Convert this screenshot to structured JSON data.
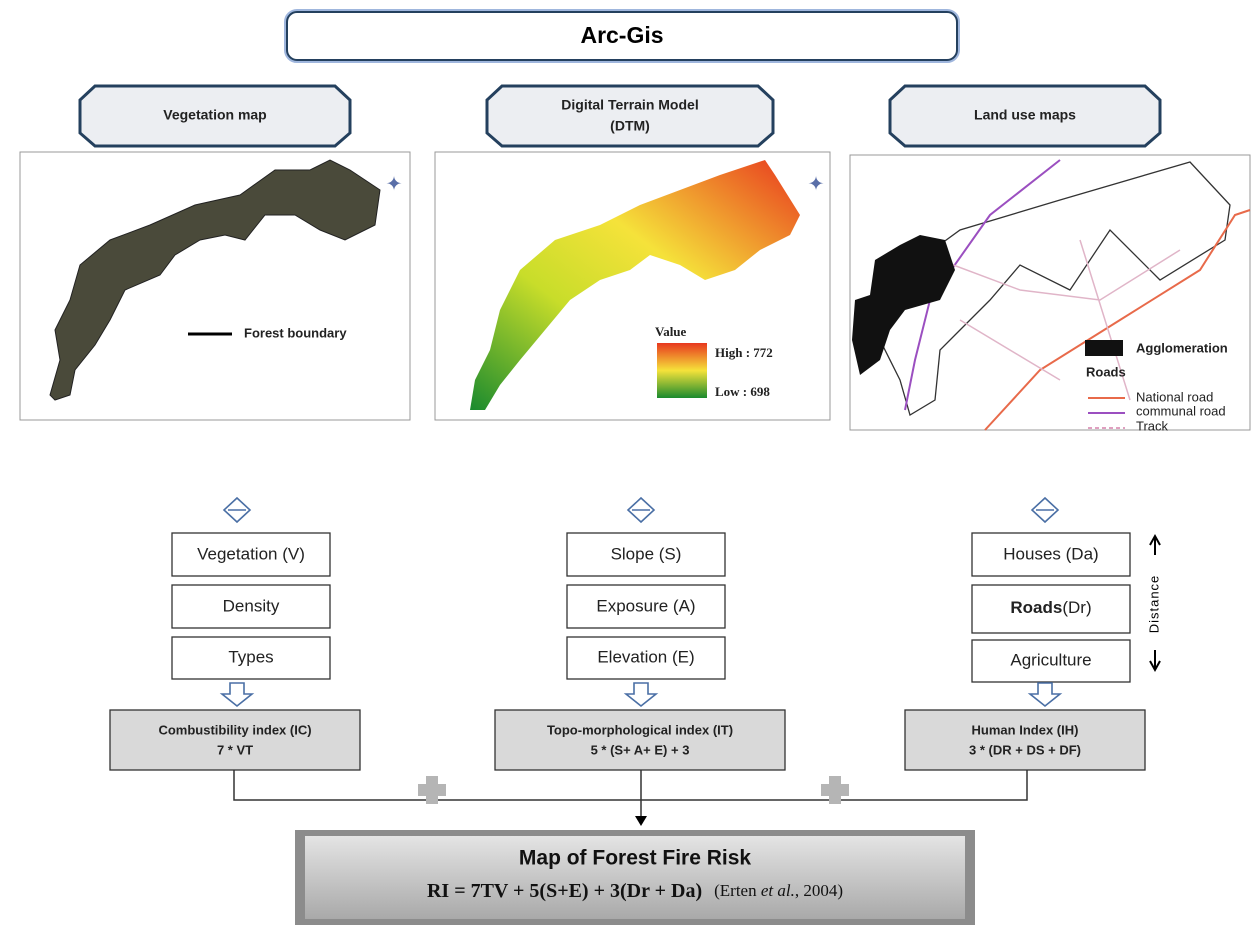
{
  "header": {
    "title": "Arc-Gis"
  },
  "columns": [
    {
      "title": [
        "Vegetation map"
      ],
      "legend": [
        "Forest boundary"
      ],
      "factors": [
        "Vegetation (V)",
        "Density",
        "Types"
      ],
      "index": {
        "name": "Combustibility index (IC)",
        "formula": "7 * VT"
      }
    },
    {
      "title": [
        "Digital Terrain Model",
        "(DTM)"
      ],
      "legend": [
        "Value",
        "High : 772",
        "Low : 698"
      ],
      "factors": [
        "Slope (S)",
        "Exposure (A)",
        "Elevation (E)"
      ],
      "index": {
        "name": "Topo-morphological  index (IT)",
        "formula": "5 * (S+ A+ E) + 3"
      }
    },
    {
      "title": [
        "Land use maps"
      ],
      "legend": [
        "Agglomeration",
        "Roads",
        "National road",
        "communal road",
        "Track"
      ],
      "factors": [
        "Houses (Da)",
        [
          "Roads",
          "(Dr)"
        ],
        "Agriculture"
      ],
      "index": {
        "name": "Human Index (IH)",
        "formula": "3 * (DR + DS + DF)"
      }
    }
  ],
  "distance_label": "Distance",
  "result": {
    "title": "Map of Forest Fire Risk",
    "formula": "RI = 7TV + 5(S+E) + 3(Dr + Da)",
    "citation": [
      "(Erten ",
      "et al.",
      ", 2004)"
    ]
  }
}
